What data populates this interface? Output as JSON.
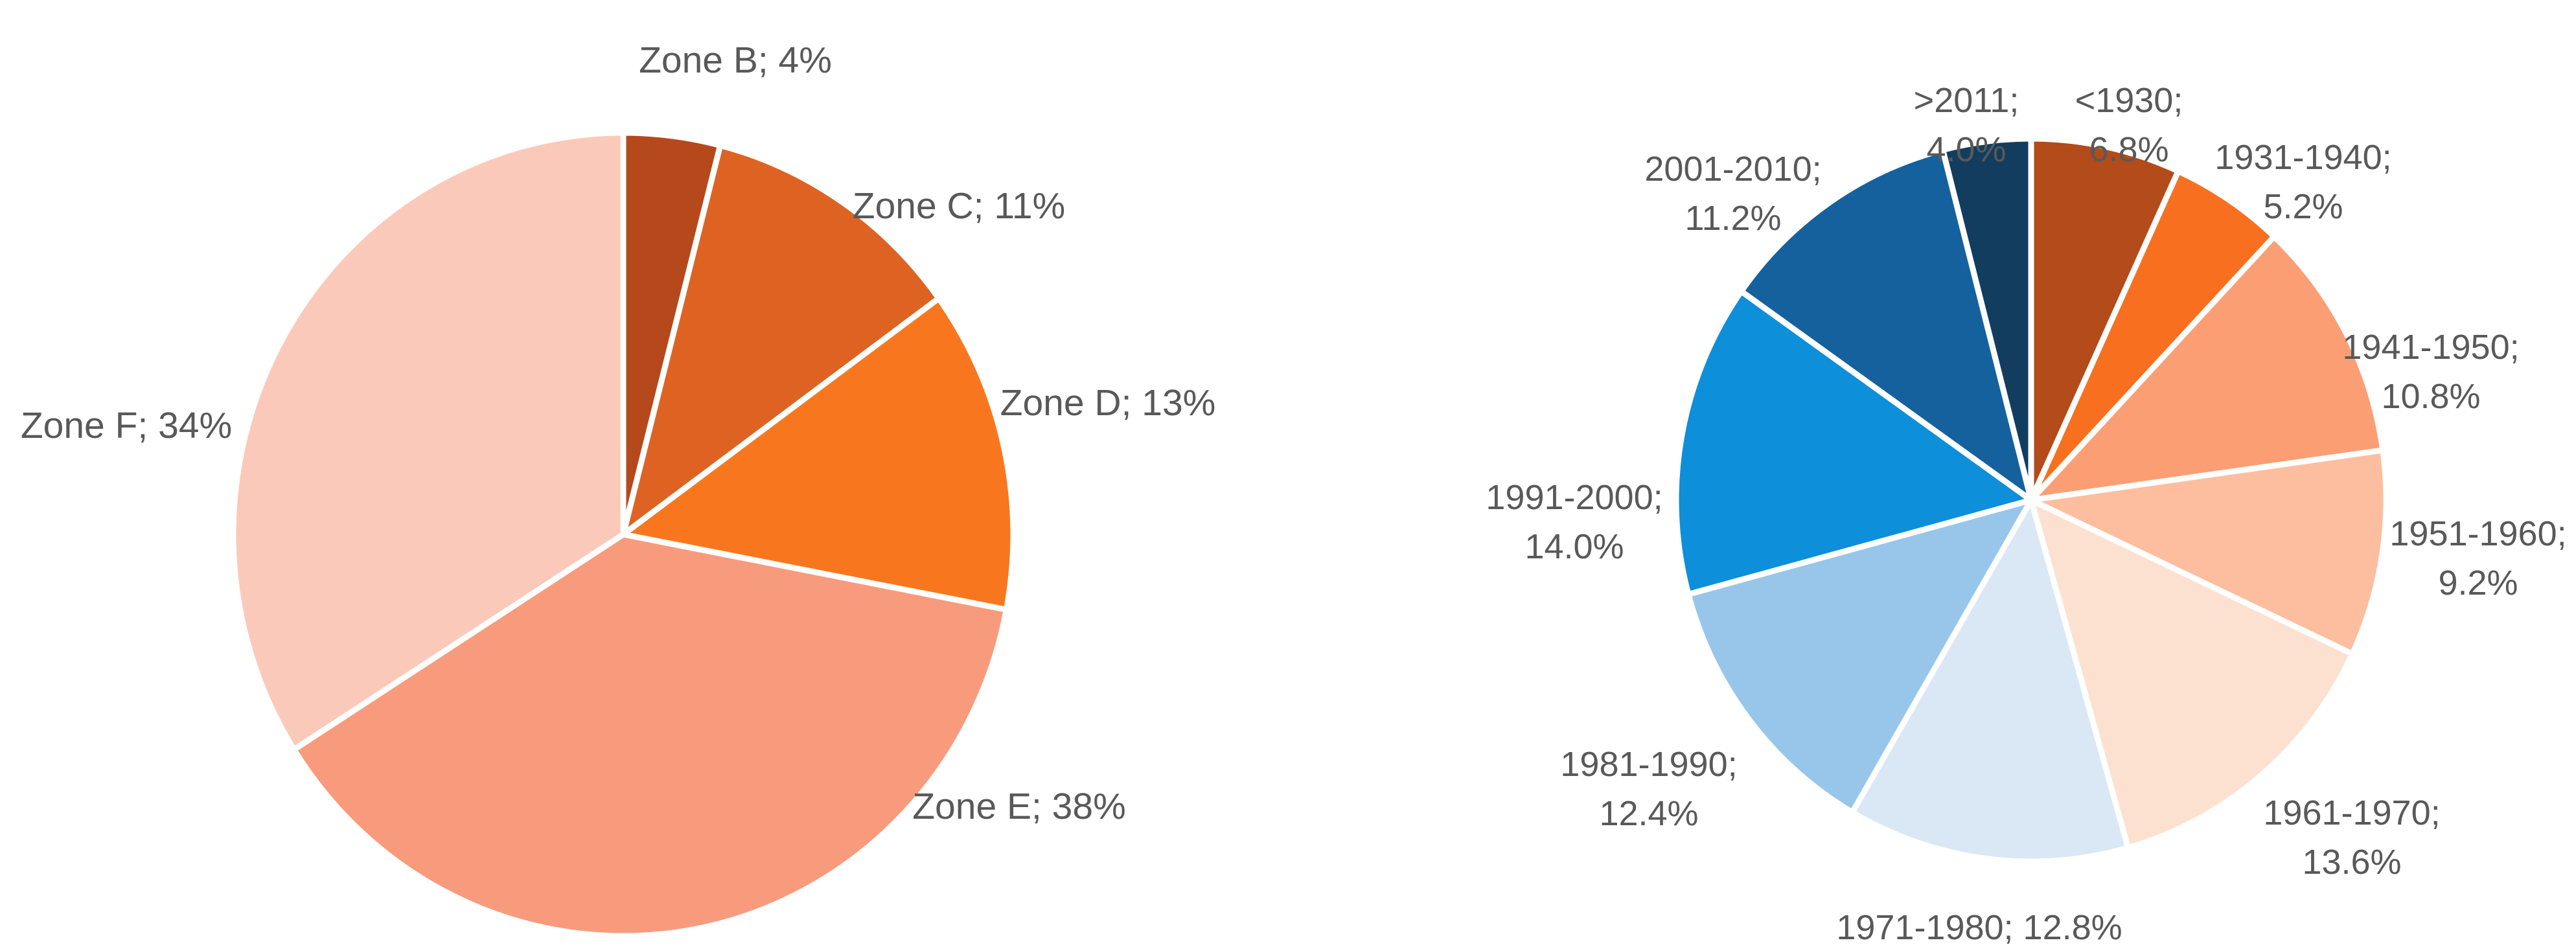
{
  "page": {
    "background_color": "#FFFFFF",
    "label_color": "#595959"
  },
  "chart_data": [
    {
      "type": "pie",
      "name": "zones-share-pie",
      "title": "",
      "unit": "%",
      "direction": "clockwise",
      "start_angle_deg": 0,
      "legend": "none",
      "label_position": "outside-end",
      "label_color": "#595959",
      "separator_color": "#FFFFFF",
      "categories": [
        "Zone B",
        "Zone C",
        "Zone D",
        "Zone E",
        "Zone F"
      ],
      "values": [
        4,
        11,
        13,
        38,
        34
      ],
      "slices": [
        {
          "category": "Zone B",
          "value": 4,
          "color": "#B5491B",
          "label_lines": [
            "Zone B; 4%"
          ]
        },
        {
          "category": "Zone C",
          "value": 11,
          "color": "#DE6322",
          "label_lines": [
            "Zone C; 11%"
          ]
        },
        {
          "category": "Zone D",
          "value": 13,
          "color": "#F8771E",
          "label_lines": [
            "Zone D; 13%"
          ]
        },
        {
          "category": "Zone E",
          "value": 38,
          "color": "#F89B7C",
          "label_lines": [
            "Zone E; 38%"
          ]
        },
        {
          "category": "Zone F",
          "value": 34,
          "color": "#FBC9BA",
          "label_lines": [
            "Zone F; 34%"
          ]
        }
      ]
    },
    {
      "type": "pie",
      "name": "construction-decade-pie",
      "title": "",
      "unit": "%",
      "direction": "clockwise",
      "start_angle_deg": 0,
      "legend": "none",
      "label_position": "outside-end",
      "label_color": "#595959",
      "separator_color": "#FFFFFF",
      "categories": [
        "<1930",
        "1931-1940",
        "1941-1950",
        "1951-1960",
        "1961-1970",
        "1971-1980",
        "1981-1990",
        "1991-2000",
        "2001-2010",
        ">2011"
      ],
      "values": [
        6.8,
        5.2,
        10.8,
        9.2,
        13.6,
        12.8,
        12.4,
        14.0,
        11.2,
        4.0
      ],
      "slices": [
        {
          "category": "<1930",
          "value": 6.8,
          "color": "#B34B1B",
          "label_lines": [
            "<1930;",
            "6.8%"
          ]
        },
        {
          "category": "1931-1940",
          "value": 5.2,
          "color": "#F8701F",
          "label_lines": [
            "1931-1940;",
            "5.2%"
          ]
        },
        {
          "category": "1941-1950",
          "value": 10.8,
          "color": "#FB9E74",
          "label_lines": [
            "1941-1950;",
            "10.8%"
          ]
        },
        {
          "category": "1951-1960",
          "value": 9.2,
          "color": "#FCBE9E",
          "label_lines": [
            "1951-1960;",
            "9.2%"
          ]
        },
        {
          "category": "1961-1970",
          "value": 13.6,
          "color": "#FDE1D0",
          "label_lines": [
            "1961-1970;",
            "13.6%"
          ]
        },
        {
          "category": "1971-1980",
          "value": 12.8,
          "color": "#DAE8F5",
          "label_lines": [
            "1971-1980; 12.8%"
          ]
        },
        {
          "category": "1981-1990",
          "value": 12.4,
          "color": "#98C6EA",
          "label_lines": [
            "1981-1990;",
            "12.4%"
          ]
        },
        {
          "category": "1991-2000",
          "value": 14.0,
          "color": "#0D8FDA",
          "label_lines": [
            "1991-2000;",
            "14.0%"
          ]
        },
        {
          "category": "2001-2010",
          "value": 11.2,
          "color": "#15619E",
          "label_lines": [
            "2001-2010;",
            "11.2%"
          ]
        },
        {
          "category": ">2011",
          "value": 4.0,
          "color": "#123D5F",
          "label_lines": [
            ">2011;",
            "4.0%"
          ]
        }
      ]
    }
  ]
}
